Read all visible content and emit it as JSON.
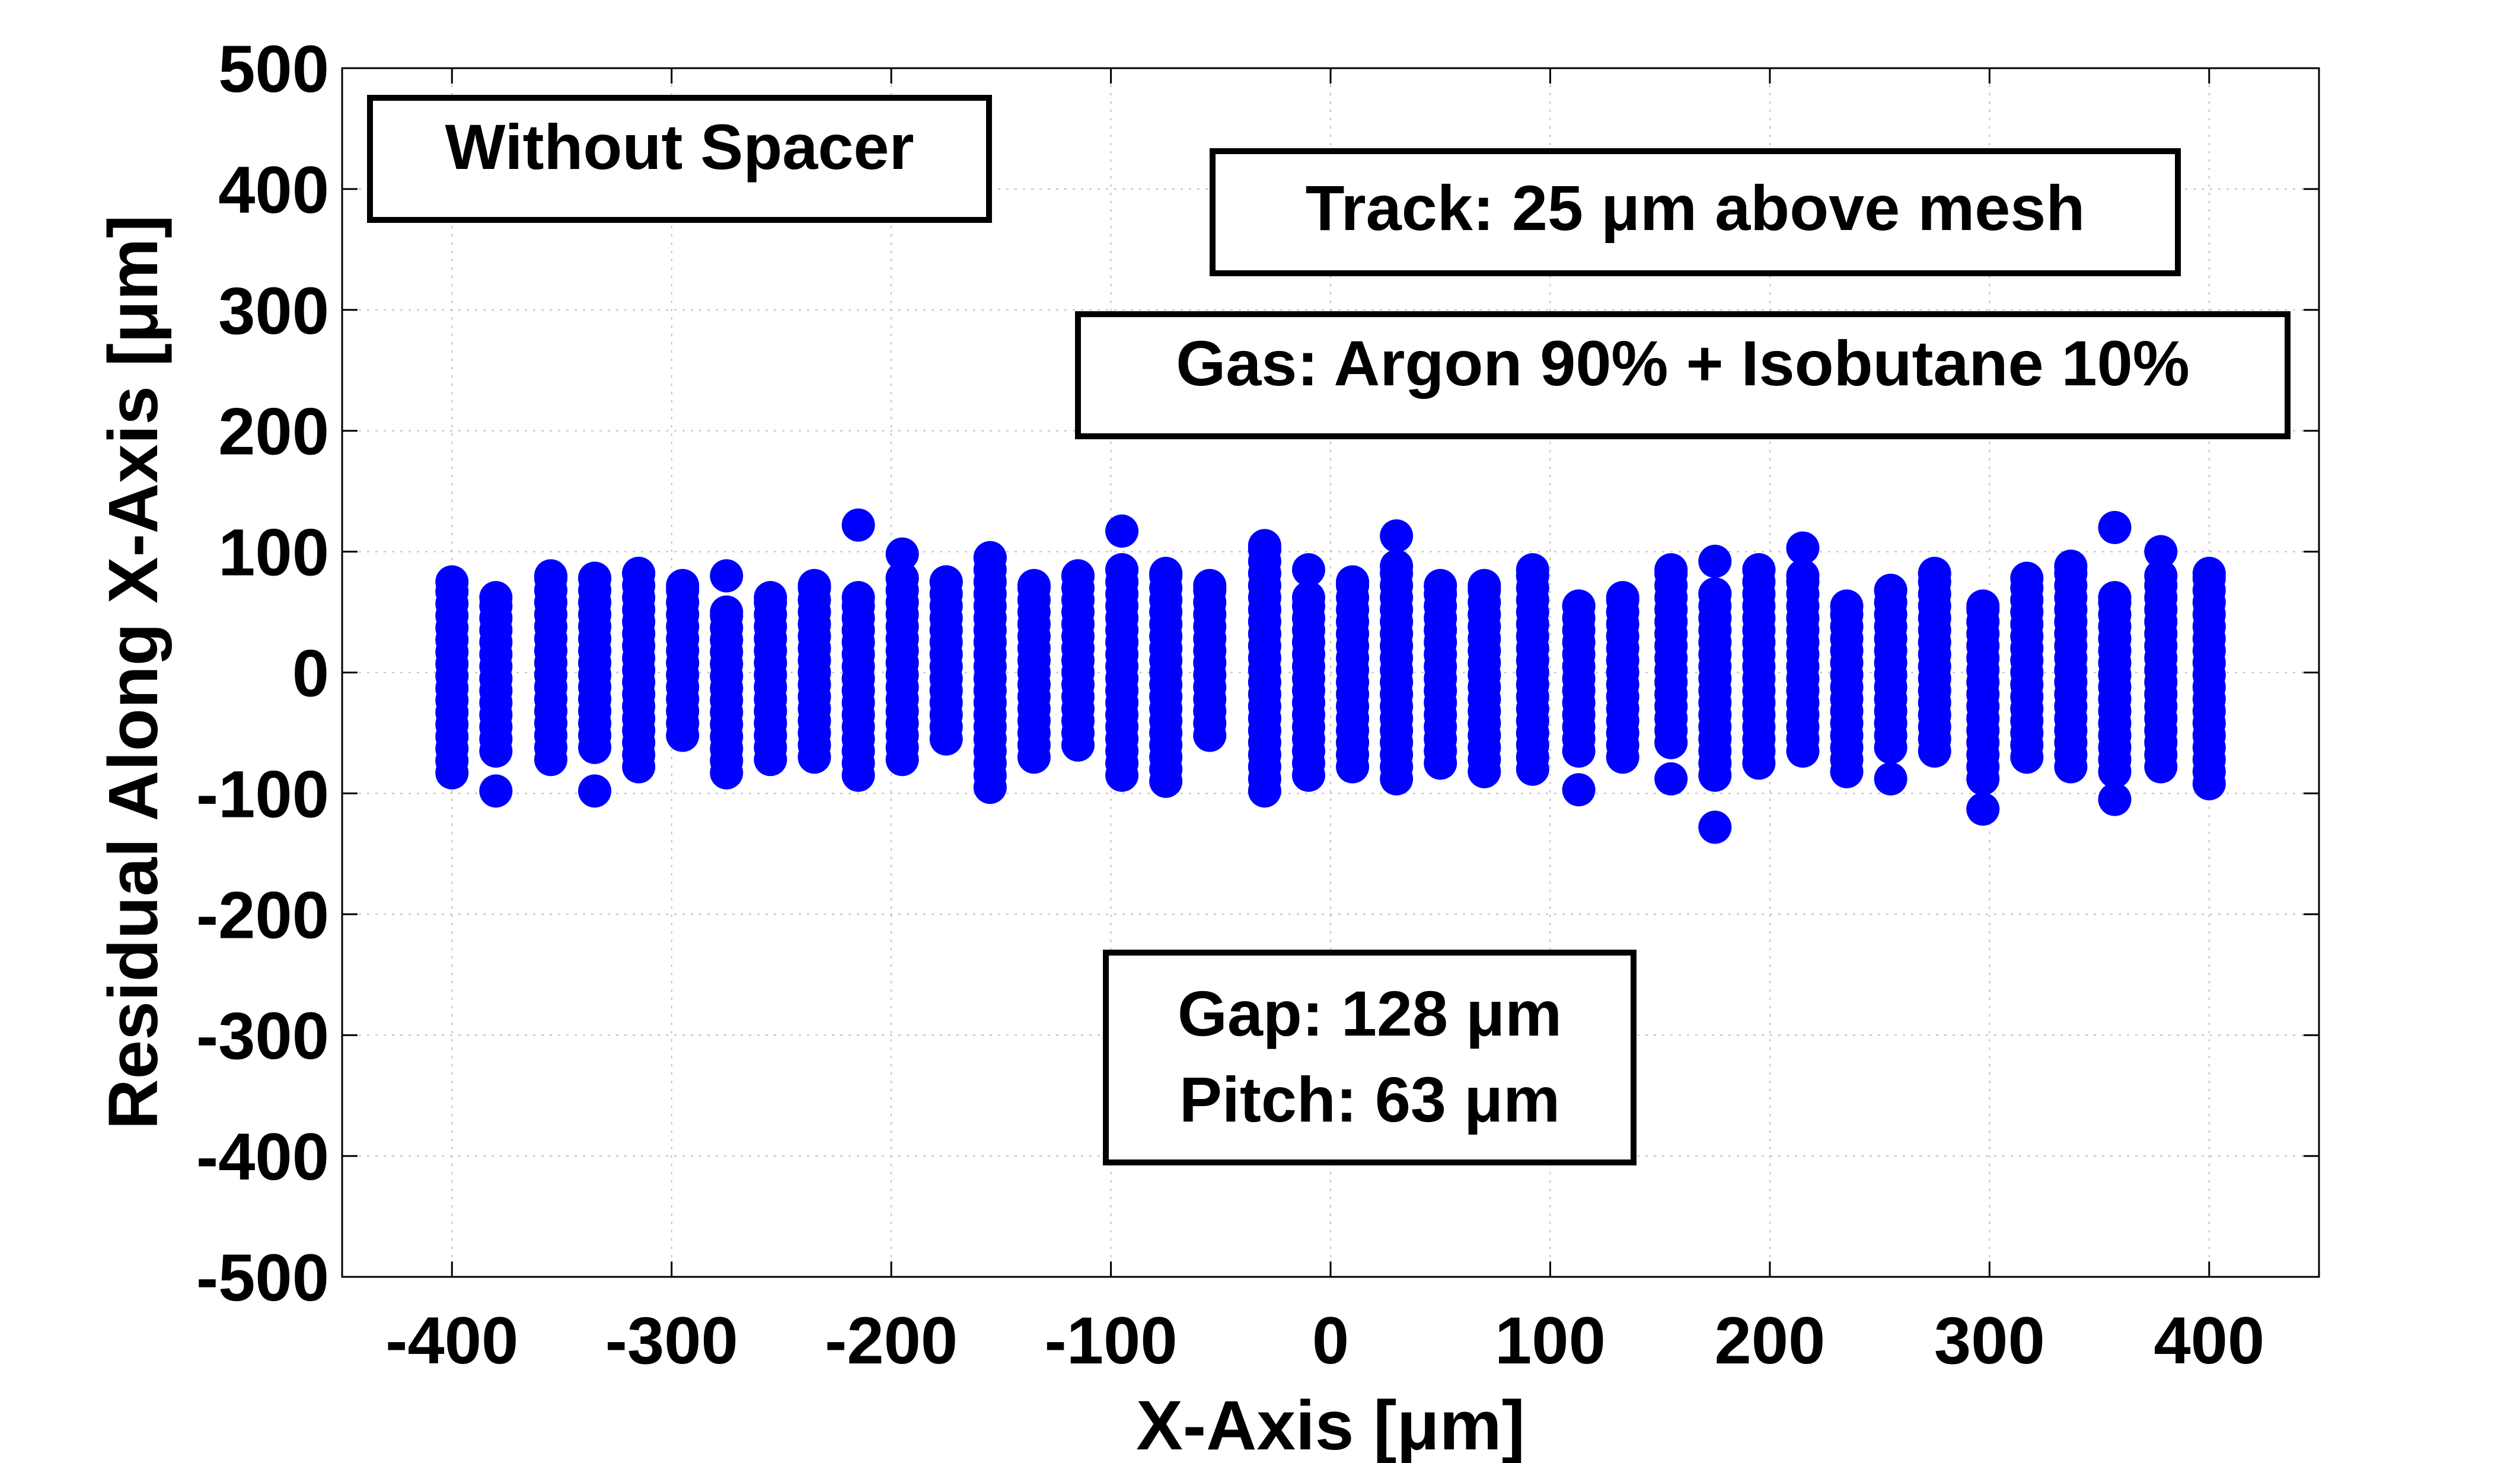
{
  "chart_data": {
    "type": "scatter",
    "title": "",
    "xlabel": "X-Axis [μm]",
    "ylabel": "Residual Along X-Axis [μm]",
    "xlim": [
      -450,
      450
    ],
    "ylim": [
      -500,
      500
    ],
    "xticks": [
      -400,
      -300,
      -200,
      -100,
      0,
      100,
      200,
      300,
      400
    ],
    "yticks": [
      500,
      400,
      300,
      200,
      100,
      0,
      -100,
      -200,
      -300,
      -400,
      -500
    ],
    "xticklabels": [
      "-400",
      "-300",
      "-200",
      "-100",
      "0",
      "100",
      "200",
      "300",
      "400"
    ],
    "yticklabels": [
      "500",
      "400",
      "300",
      "200",
      "100",
      "0",
      "-100",
      "-200",
      "-300",
      "-400",
      "-500"
    ],
    "grid": true,
    "marker_color": "#0000ff",
    "series": [
      {
        "columns": [
          {
            "x": -400,
            "min": -83,
            "max": 75,
            "outliers": []
          },
          {
            "x": -380,
            "min": -65,
            "max": 62,
            "outliers": [
              -98
            ]
          },
          {
            "x": -355,
            "min": -72,
            "max": 80,
            "outliers": []
          },
          {
            "x": -335,
            "min": -62,
            "max": 78,
            "outliers": [
              -98
            ]
          },
          {
            "x": -315,
            "min": -78,
            "max": 82,
            "outliers": []
          },
          {
            "x": -295,
            "min": -52,
            "max": 72,
            "outliers": []
          },
          {
            "x": -275,
            "min": -83,
            "max": 50,
            "outliers": [
              80
            ]
          },
          {
            "x": -255,
            "min": -72,
            "max": 62,
            "outliers": []
          },
          {
            "x": -235,
            "min": -70,
            "max": 72,
            "outliers": []
          },
          {
            "x": -215,
            "min": -85,
            "max": 62,
            "outliers": [
              122
            ]
          },
          {
            "x": -195,
            "min": -72,
            "max": 78,
            "outliers": [
              98
            ]
          },
          {
            "x": -175,
            "min": -55,
            "max": 75,
            "outliers": []
          },
          {
            "x": -155,
            "min": -95,
            "max": 95,
            "outliers": []
          },
          {
            "x": -135,
            "min": -70,
            "max": 72,
            "outliers": []
          },
          {
            "x": -115,
            "min": -60,
            "max": 80,
            "outliers": []
          },
          {
            "x": -95,
            "min": -85,
            "max": 85,
            "outliers": [
              117
            ]
          },
          {
            "x": -75,
            "min": -90,
            "max": 82,
            "outliers": []
          },
          {
            "x": -55,
            "min": -52,
            "max": 72,
            "outliers": []
          },
          {
            "x": -30,
            "min": -98,
            "max": 105,
            "outliers": []
          },
          {
            "x": -10,
            "min": -85,
            "max": 62,
            "outliers": [
              85
            ]
          },
          {
            "x": 10,
            "min": -78,
            "max": 75,
            "outliers": []
          },
          {
            "x": 30,
            "min": -88,
            "max": 88,
            "outliers": [
              113
            ]
          },
          {
            "x": 50,
            "min": -75,
            "max": 72,
            "outliers": []
          },
          {
            "x": 70,
            "min": -82,
            "max": 72,
            "outliers": []
          },
          {
            "x": 92,
            "min": -80,
            "max": 85,
            "outliers": []
          },
          {
            "x": 113,
            "min": -65,
            "max": 55,
            "outliers": [
              -97
            ]
          },
          {
            "x": 133,
            "min": -70,
            "max": 62,
            "outliers": []
          },
          {
            "x": 155,
            "min": -58,
            "max": 85,
            "outliers": [
              -88
            ]
          },
          {
            "x": 175,
            "min": -85,
            "max": 65,
            "outliers": [
              92,
              -128
            ]
          },
          {
            "x": 195,
            "min": -75,
            "max": 85,
            "outliers": []
          },
          {
            "x": 215,
            "min": -65,
            "max": 80,
            "outliers": [
              103
            ]
          },
          {
            "x": 235,
            "min": -82,
            "max": 55,
            "outliers": []
          },
          {
            "x": 255,
            "min": -62,
            "max": 68,
            "outliers": [
              -88
            ]
          },
          {
            "x": 275,
            "min": -65,
            "max": 82,
            "outliers": []
          },
          {
            "x": 297,
            "min": -88,
            "max": 55,
            "outliers": [
              -113
            ]
          },
          {
            "x": 317,
            "min": -70,
            "max": 78,
            "outliers": []
          },
          {
            "x": 337,
            "min": -78,
            "max": 88,
            "outliers": []
          },
          {
            "x": 357,
            "min": -82,
            "max": 62,
            "outliers": [
              120,
              -105
            ]
          },
          {
            "x": 378,
            "min": -78,
            "max": 80,
            "outliers": [
              100
            ]
          },
          {
            "x": 400,
            "min": -92,
            "max": 82,
            "outliers": []
          }
        ]
      }
    ],
    "annotations": [
      {
        "lines": [
          "Without Spacer"
        ]
      },
      {
        "lines": [
          "Track: 25 μm above mesh"
        ]
      },
      {
        "lines": [
          "Gas: Argon 90% + Isobutane 10%"
        ]
      },
      {
        "lines": [
          "Gap: 128 μm",
          "Pitch: 63 μm"
        ]
      }
    ]
  }
}
